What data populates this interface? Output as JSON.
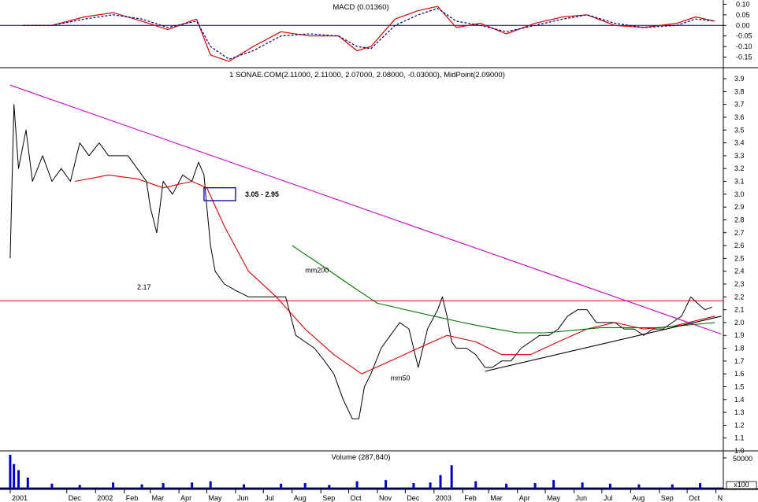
{
  "chart_data": [
    {
      "type": "line",
      "panel": "macd",
      "title": "MACD (0.01360)",
      "ylim": [
        -0.2,
        0.12
      ],
      "yticks": [
        "0.10",
        "0.05",
        "0.00",
        "-0.05",
        "-0.10",
        "-0.15"
      ],
      "ytick_values": [
        0.1,
        0.05,
        0.0,
        -0.05,
        -0.1,
        -0.15
      ],
      "zero_line": 0.0,
      "series": [
        {
          "name": "MACD",
          "color": "#dd0000",
          "style": "solid",
          "x": [
            "2001-10-15",
            "2001-11-15",
            "2001-12-20",
            "2002-01-20",
            "2002-02-20",
            "2002-03-20",
            "2002-04-20",
            "2002-05-05",
            "2002-05-25",
            "2002-06-20",
            "2002-07-20",
            "2002-08-20",
            "2002-09-20",
            "2002-10-10",
            "2002-10-25",
            "2002-11-20",
            "2002-12-15",
            "2003-01-05",
            "2003-01-25",
            "2003-02-20",
            "2003-03-20",
            "2003-04-20",
            "2003-05-20",
            "2003-06-15",
            "2003-07-15",
            "2003-08-15",
            "2003-09-20",
            "2003-10-10",
            "2003-10-31"
          ],
          "values": [
            0.0,
            0.0,
            0.04,
            0.06,
            0.02,
            -0.02,
            0.03,
            -0.14,
            -0.17,
            -0.1,
            -0.03,
            -0.05,
            -0.05,
            -0.12,
            -0.1,
            0.03,
            0.07,
            0.09,
            -0.01,
            0.01,
            -0.04,
            0.01,
            0.04,
            0.05,
            0.0,
            -0.01,
            0.01,
            0.04,
            0.02
          ]
        },
        {
          "name": "Signal",
          "color": "#000080",
          "style": "dashed",
          "x": [
            "2001-10-15",
            "2001-11-15",
            "2001-12-20",
            "2002-01-20",
            "2002-02-20",
            "2002-03-20",
            "2002-04-20",
            "2002-05-05",
            "2002-05-25",
            "2002-06-20",
            "2002-07-20",
            "2002-08-20",
            "2002-09-20",
            "2002-10-10",
            "2002-10-25",
            "2002-11-20",
            "2002-12-15",
            "2003-01-05",
            "2003-01-25",
            "2003-02-20",
            "2003-03-20",
            "2003-04-20",
            "2003-05-20",
            "2003-06-15",
            "2003-07-15",
            "2003-08-15",
            "2003-09-20",
            "2003-10-10",
            "2003-10-31"
          ],
          "values": [
            0.0,
            0.0,
            0.03,
            0.05,
            0.03,
            -0.01,
            0.02,
            -0.1,
            -0.16,
            -0.12,
            -0.05,
            -0.04,
            -0.05,
            -0.1,
            -0.11,
            0.0,
            0.05,
            0.08,
            0.02,
            0.0,
            -0.03,
            0.0,
            0.03,
            0.05,
            0.01,
            -0.01,
            0.0,
            0.03,
            0.02
          ]
        }
      ]
    },
    {
      "type": "line",
      "panel": "price",
      "title": "1 SONAE.COM(2.11000, 2.11000, 2.07000, 2.08000, -0.03000), MidPoint(2.09000)",
      "ylim": [
        1.0,
        3.98
      ],
      "yticks": [
        "3.9",
        "3.8",
        "3.7",
        "3.6",
        "3.5",
        "3.4",
        "3.3",
        "3.2",
        "3.1",
        "3.0",
        "2.9",
        "2.8",
        "2.7",
        "2.6",
        "2.5",
        "2.4",
        "2.3",
        "2.2",
        "2.1",
        "2.0",
        "1.9",
        "1.8",
        "1.7",
        "1.6",
        "1.5",
        "1.4",
        "1.3",
        "1.2",
        "1.1",
        "1.0"
      ],
      "ytick_values": [
        3.9,
        3.8,
        3.7,
        3.6,
        3.5,
        3.4,
        3.3,
        3.2,
        3.1,
        3.0,
        2.9,
        2.8,
        2.7,
        2.6,
        2.5,
        2.4,
        2.3,
        2.2,
        2.1,
        2.0,
        1.9,
        1.8,
        1.7,
        1.6,
        1.5,
        1.4,
        1.3,
        1.2,
        1.1,
        1.0
      ],
      "series": [
        {
          "name": "Price",
          "color": "#000000",
          "style": "solid",
          "x": [
            "2001-10-01",
            "2001-10-05",
            "2001-10-10",
            "2001-10-18",
            "2001-10-25",
            "2001-11-05",
            "2001-11-15",
            "2001-11-25",
            "2001-12-05",
            "2001-12-15",
            "2001-12-25",
            "2002-01-05",
            "2002-01-15",
            "2002-01-25",
            "2002-02-05",
            "2002-02-15",
            "2002-02-25",
            "2002-03-01",
            "2002-03-08",
            "2002-03-15",
            "2002-03-25",
            "2002-04-05",
            "2002-04-15",
            "2002-04-22",
            "2002-04-28",
            "2002-05-01",
            "2002-05-05",
            "2002-05-10",
            "2002-05-20",
            "2002-06-01",
            "2002-06-15",
            "2002-07-01",
            "2002-07-15",
            "2002-07-25",
            "2002-08-05",
            "2002-08-15",
            "2002-08-25",
            "2002-09-05",
            "2002-09-15",
            "2002-09-25",
            "2002-10-05",
            "2002-10-12",
            "2002-10-18",
            "2002-10-25",
            "2002-11-05",
            "2002-11-15",
            "2002-11-25",
            "2002-12-05",
            "2002-12-15",
            "2002-12-25",
            "2003-01-05",
            "2003-01-10",
            "2003-01-15",
            "2003-01-20",
            "2003-01-25",
            "2003-02-05",
            "2003-02-15",
            "2003-02-25",
            "2003-03-05",
            "2003-03-15",
            "2003-03-25",
            "2003-04-05",
            "2003-04-15",
            "2003-04-25",
            "2003-05-05",
            "2003-05-15",
            "2003-05-25",
            "2003-06-05",
            "2003-06-15",
            "2003-06-25",
            "2003-07-05",
            "2003-07-15",
            "2003-07-25",
            "2003-08-05",
            "2003-08-15",
            "2003-08-25",
            "2003-09-05",
            "2003-09-15",
            "2003-09-25",
            "2003-10-05",
            "2003-10-12",
            "2003-10-20",
            "2003-10-28"
          ],
          "values": [
            2.5,
            3.7,
            3.2,
            3.5,
            3.1,
            3.3,
            3.1,
            3.2,
            3.1,
            3.4,
            3.3,
            3.4,
            3.3,
            3.3,
            3.3,
            3.2,
            3.1,
            2.9,
            2.7,
            3.1,
            3.0,
            3.15,
            3.1,
            3.25,
            3.15,
            2.9,
            2.6,
            2.4,
            2.3,
            2.25,
            2.2,
            2.2,
            2.2,
            2.2,
            1.9,
            1.85,
            1.8,
            1.7,
            1.6,
            1.4,
            1.25,
            1.25,
            1.5,
            1.6,
            1.8,
            1.9,
            2.0,
            1.95,
            1.65,
            1.95,
            2.1,
            2.2,
            2.05,
            1.85,
            1.8,
            1.8,
            1.75,
            1.65,
            1.65,
            1.7,
            1.7,
            1.8,
            1.85,
            1.9,
            1.9,
            1.95,
            2.05,
            2.1,
            2.1,
            2.0,
            2.0,
            2.0,
            1.95,
            1.95,
            1.9,
            1.95,
            1.95,
            2.0,
            2.05,
            2.2,
            2.15,
            2.1,
            2.12
          ]
        },
        {
          "name": "mm50",
          "color": "#dd0000",
          "style": "solid",
          "x": [
            "2001-12-10",
            "2002-01-15",
            "2002-02-15",
            "2002-03-15",
            "2002-04-15",
            "2002-05-01",
            "2002-05-20",
            "2002-06-15",
            "2002-07-15",
            "2002-08-15",
            "2002-09-15",
            "2002-10-15",
            "2002-11-15",
            "2002-12-15",
            "2003-01-15",
            "2003-02-15",
            "2003-03-15",
            "2003-04-15",
            "2003-05-15",
            "2003-06-15",
            "2003-07-15",
            "2003-08-15",
            "2003-09-15",
            "2003-10-31"
          ],
          "values": [
            3.1,
            3.15,
            3.12,
            3.05,
            3.1,
            3.05,
            2.75,
            2.4,
            2.2,
            1.95,
            1.75,
            1.6,
            1.7,
            1.8,
            1.9,
            1.85,
            1.75,
            1.75,
            1.85,
            1.95,
            2.0,
            1.95,
            1.97,
            2.05
          ]
        },
        {
          "name": "mm200",
          "color": "#007700",
          "style": "solid",
          "x": [
            "2002-08-01",
            "2002-09-01",
            "2002-10-01",
            "2002-11-01",
            "2002-12-01",
            "2003-01-01",
            "2003-02-01",
            "2003-03-01",
            "2003-04-01",
            "2003-05-01",
            "2003-06-01",
            "2003-07-01",
            "2003-08-01",
            "2003-09-01",
            "2003-10-01",
            "2003-10-31"
          ],
          "values": [
            2.6,
            2.45,
            2.3,
            2.15,
            2.1,
            2.05,
            2.0,
            1.96,
            1.92,
            1.92,
            1.94,
            1.96,
            1.96,
            1.96,
            1.98,
            2.0
          ]
        },
        {
          "name": "Downtrend",
          "color": "#cc00cc",
          "style": "solid",
          "x": [
            "2001-10-01",
            "2003-11-07"
          ],
          "values": [
            3.85,
            1.91
          ]
        },
        {
          "name": "Uptrend",
          "color": "#000000",
          "style": "solid",
          "x": [
            "2003-02-25",
            "2003-11-07"
          ],
          "values": [
            1.62,
            2.05
          ]
        }
      ],
      "hline": {
        "value": 2.17,
        "color": "#dd0000",
        "label": "2.17"
      },
      "box": {
        "x": [
          "2002-04-28",
          "2002-06-01"
        ],
        "y": [
          2.95,
          3.05
        ],
        "label": "3.05 - 2.95",
        "color": "#000099"
      },
      "annotations": [
        {
          "text": "mm200",
          "x": "2002-08-15",
          "y": 2.39,
          "color": "#007700"
        },
        {
          "text": "mm50",
          "x": "2002-11-15",
          "y": 1.55,
          "color": "#dd0000"
        }
      ]
    },
    {
      "type": "bar",
      "panel": "volume",
      "title": "Volume (287,840)",
      "ylim": [
        0,
        55000
      ],
      "yticks": [
        "50000"
      ],
      "ytick_values": [
        50000
      ],
      "unit": "x100",
      "color": "#0000cc",
      "series": [
        {
          "name": "Volume",
          "x": [
            "2001-10-01",
            "2001-10-05",
            "2001-10-10",
            "2001-10-20",
            "2001-11-15",
            "2001-12-15",
            "2002-01-20",
            "2002-02-20",
            "2002-03-15",
            "2002-04-15",
            "2002-05-05",
            "2002-06-10",
            "2002-07-20",
            "2002-08-15",
            "2002-09-10",
            "2002-10-10",
            "2002-11-10",
            "2002-12-10",
            "2002-12-28",
            "2003-01-08",
            "2003-01-20",
            "2003-02-15",
            "2003-03-20",
            "2003-04-20",
            "2003-05-10",
            "2003-06-10",
            "2003-07-10",
            "2003-08-10",
            "2003-09-15",
            "2003-10-15"
          ],
          "values": [
            55000,
            40000,
            30000,
            18000,
            8000,
            6000,
            10000,
            7000,
            9000,
            10000,
            12000,
            7000,
            8000,
            9000,
            6000,
            12000,
            14000,
            9000,
            10000,
            22000,
            38000,
            12000,
            8000,
            9000,
            14000,
            10000,
            8000,
            7000,
            7000,
            9000
          ]
        }
      ],
      "xticks": [
        {
          "label": "2001",
          "x": "2001-10-01"
        },
        {
          "label": "Dec",
          "x": "2001-12-01"
        },
        {
          "label": "2002",
          "x": "2002-01-01"
        },
        {
          "label": "Feb",
          "x": "2002-02-01"
        },
        {
          "label": "Mar",
          "x": "2002-03-01"
        },
        {
          "label": "Apr",
          "x": "2002-04-01"
        },
        {
          "label": "May",
          "x": "2002-05-01"
        },
        {
          "label": "Jun",
          "x": "2002-06-01"
        },
        {
          "label": "Jul",
          "x": "2002-07-01"
        },
        {
          "label": "Aug",
          "x": "2002-08-01"
        },
        {
          "label": "Sep",
          "x": "2002-09-01"
        },
        {
          "label": "Oct",
          "x": "2002-10-01"
        },
        {
          "label": "Nov",
          "x": "2002-11-01"
        },
        {
          "label": "Dec",
          "x": "2002-12-01"
        },
        {
          "label": "2003",
          "x": "2003-01-01"
        },
        {
          "label": "Feb",
          "x": "2003-02-01"
        },
        {
          "label": "Mar",
          "x": "2003-03-01"
        },
        {
          "label": "Apr",
          "x": "2003-04-01"
        },
        {
          "label": "May",
          "x": "2003-05-01"
        },
        {
          "label": "Jun",
          "x": "2003-06-01"
        },
        {
          "label": "Jul",
          "x": "2003-07-01"
        },
        {
          "label": "Aug",
          "x": "2003-08-01"
        },
        {
          "label": "Sep",
          "x": "2003-09-01"
        },
        {
          "label": "Oct",
          "x": "2003-10-01"
        },
        {
          "label": "N",
          "x": "2003-11-01"
        }
      ]
    }
  ]
}
